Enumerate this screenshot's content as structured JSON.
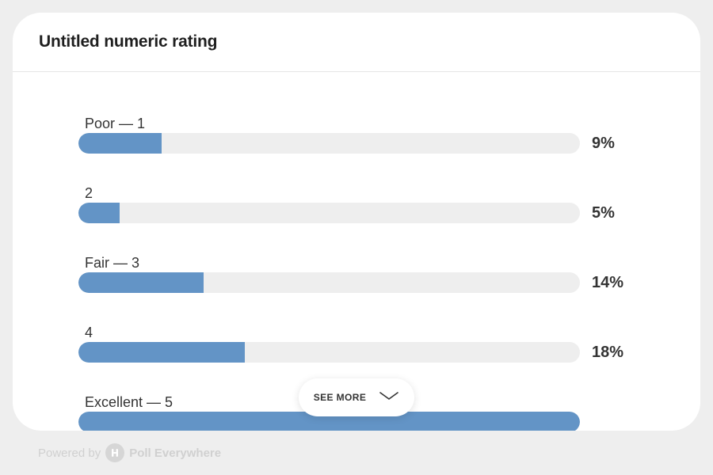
{
  "poll": {
    "title": "Untitled numeric rating",
    "options": [
      {
        "label": "Poor — 1",
        "percent_label": "9%",
        "fill_fraction": 0.166
      },
      {
        "label": "2",
        "percent_label": "5%",
        "fill_fraction": 0.082
      },
      {
        "label": "Fair — 3",
        "percent_label": "14%",
        "fill_fraction": 0.25
      },
      {
        "label": "4",
        "percent_label": "18%",
        "fill_fraction": 0.332
      },
      {
        "label": "Excellent — 5",
        "percent_label": "",
        "fill_fraction": 1.0
      }
    ],
    "see_more_label": "SEE MORE"
  },
  "footer": {
    "powered_by": "Powered by",
    "brand": "Poll Everywhere"
  },
  "colors": {
    "bar_fill": "#6394c6",
    "bar_track": "#eeeeee",
    "background": "#eeeeee"
  },
  "icons": {
    "see_more": "chevron-down-icon",
    "brand_logo": "poll-everywhere-logo"
  }
}
